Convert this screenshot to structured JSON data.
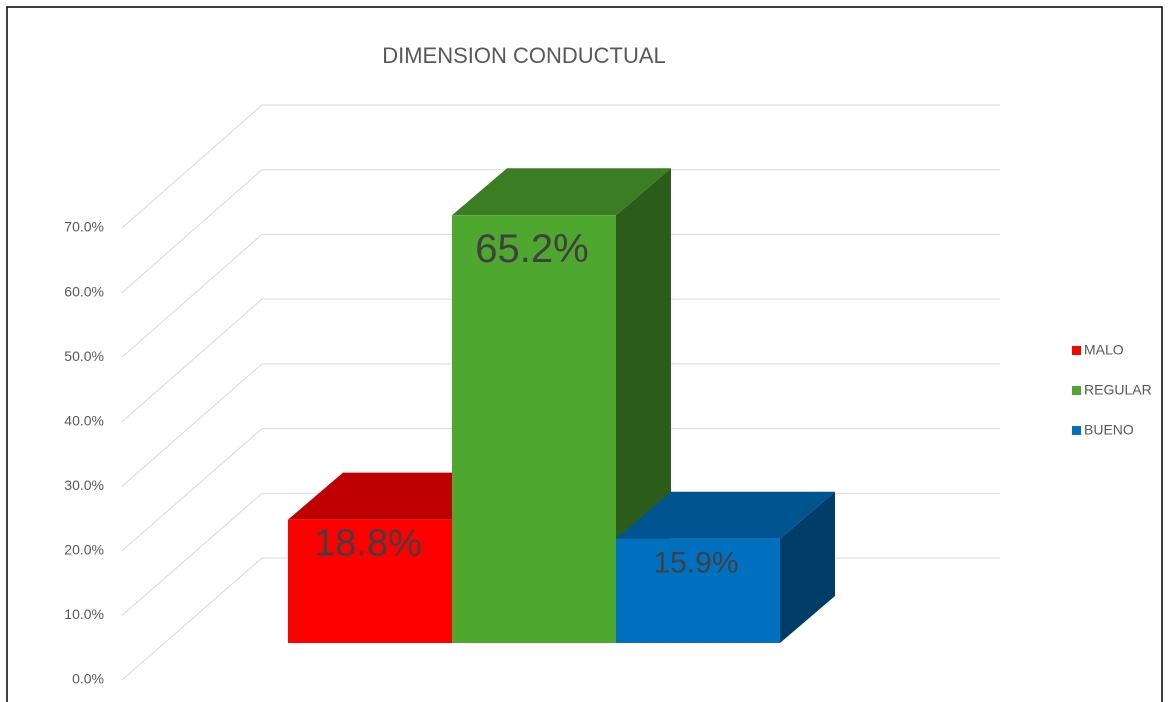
{
  "chart_data": {
    "type": "bar3d",
    "title": "DIMENSION CONDUCTUAL",
    "series": [
      {
        "name": "MALO",
        "color": "#ff0000",
        "values": [
          18.8
        ],
        "value_labels": [
          "18.8%"
        ]
      },
      {
        "name": "REGULAR",
        "color": "#4ea72e",
        "values": [
          65.2
        ],
        "value_labels": [
          "65.2%"
        ]
      },
      {
        "name": "BUENO",
        "color": "#0070c0",
        "values": [
          15.9
        ],
        "value_labels": [
          "15.9%"
        ]
      }
    ],
    "ylim": [
      0,
      70
    ],
    "yticks": [
      {
        "value": 0,
        "label": "0.0%"
      },
      {
        "value": 10,
        "label": "10.0%"
      },
      {
        "value": 20,
        "label": "20.0%"
      },
      {
        "value": 30,
        "label": "30.0%"
      },
      {
        "value": 40,
        "label": "40.0%"
      },
      {
        "value": 50,
        "label": "50.0%"
      },
      {
        "value": 60,
        "label": "60.0%"
      },
      {
        "value": 70,
        "label": "70.0%"
      }
    ],
    "grid": true,
    "legend": "right"
  }
}
